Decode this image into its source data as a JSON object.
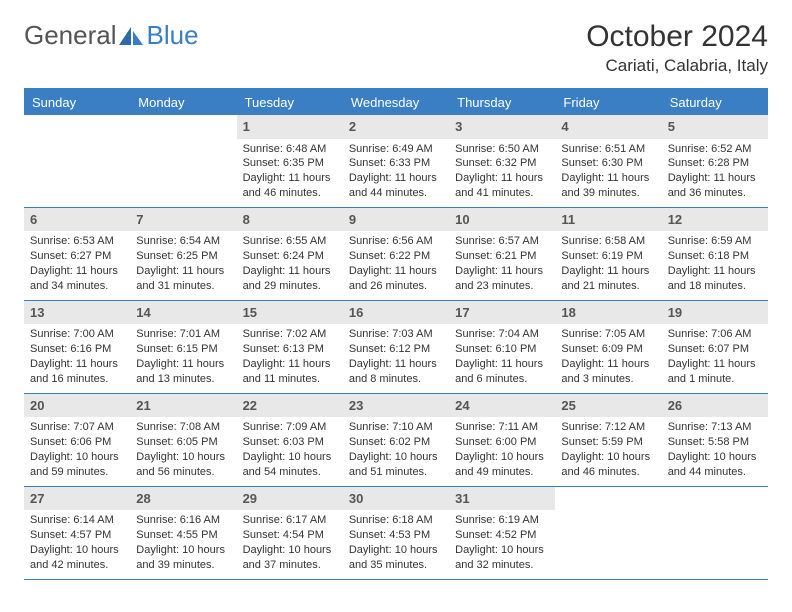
{
  "logo": {
    "text1": "General",
    "text2": "Blue"
  },
  "title": "October 2024",
  "location": "Cariati, Calabria, Italy",
  "colors": {
    "accent": "#3a7fc4",
    "daynum_bg": "#e8e8e8",
    "text": "#333333"
  },
  "day_headers": [
    "Sunday",
    "Monday",
    "Tuesday",
    "Wednesday",
    "Thursday",
    "Friday",
    "Saturday"
  ],
  "weeks": [
    [
      null,
      null,
      {
        "n": "1",
        "sr": "Sunrise: 6:48 AM",
        "ss": "Sunset: 6:35 PM",
        "dl": "Daylight: 11 hours and 46 minutes."
      },
      {
        "n": "2",
        "sr": "Sunrise: 6:49 AM",
        "ss": "Sunset: 6:33 PM",
        "dl": "Daylight: 11 hours and 44 minutes."
      },
      {
        "n": "3",
        "sr": "Sunrise: 6:50 AM",
        "ss": "Sunset: 6:32 PM",
        "dl": "Daylight: 11 hours and 41 minutes."
      },
      {
        "n": "4",
        "sr": "Sunrise: 6:51 AM",
        "ss": "Sunset: 6:30 PM",
        "dl": "Daylight: 11 hours and 39 minutes."
      },
      {
        "n": "5",
        "sr": "Sunrise: 6:52 AM",
        "ss": "Sunset: 6:28 PM",
        "dl": "Daylight: 11 hours and 36 minutes."
      }
    ],
    [
      {
        "n": "6",
        "sr": "Sunrise: 6:53 AM",
        "ss": "Sunset: 6:27 PM",
        "dl": "Daylight: 11 hours and 34 minutes."
      },
      {
        "n": "7",
        "sr": "Sunrise: 6:54 AM",
        "ss": "Sunset: 6:25 PM",
        "dl": "Daylight: 11 hours and 31 minutes."
      },
      {
        "n": "8",
        "sr": "Sunrise: 6:55 AM",
        "ss": "Sunset: 6:24 PM",
        "dl": "Daylight: 11 hours and 29 minutes."
      },
      {
        "n": "9",
        "sr": "Sunrise: 6:56 AM",
        "ss": "Sunset: 6:22 PM",
        "dl": "Daylight: 11 hours and 26 minutes."
      },
      {
        "n": "10",
        "sr": "Sunrise: 6:57 AM",
        "ss": "Sunset: 6:21 PM",
        "dl": "Daylight: 11 hours and 23 minutes."
      },
      {
        "n": "11",
        "sr": "Sunrise: 6:58 AM",
        "ss": "Sunset: 6:19 PM",
        "dl": "Daylight: 11 hours and 21 minutes."
      },
      {
        "n": "12",
        "sr": "Sunrise: 6:59 AM",
        "ss": "Sunset: 6:18 PM",
        "dl": "Daylight: 11 hours and 18 minutes."
      }
    ],
    [
      {
        "n": "13",
        "sr": "Sunrise: 7:00 AM",
        "ss": "Sunset: 6:16 PM",
        "dl": "Daylight: 11 hours and 16 minutes."
      },
      {
        "n": "14",
        "sr": "Sunrise: 7:01 AM",
        "ss": "Sunset: 6:15 PM",
        "dl": "Daylight: 11 hours and 13 minutes."
      },
      {
        "n": "15",
        "sr": "Sunrise: 7:02 AM",
        "ss": "Sunset: 6:13 PM",
        "dl": "Daylight: 11 hours and 11 minutes."
      },
      {
        "n": "16",
        "sr": "Sunrise: 7:03 AM",
        "ss": "Sunset: 6:12 PM",
        "dl": "Daylight: 11 hours and 8 minutes."
      },
      {
        "n": "17",
        "sr": "Sunrise: 7:04 AM",
        "ss": "Sunset: 6:10 PM",
        "dl": "Daylight: 11 hours and 6 minutes."
      },
      {
        "n": "18",
        "sr": "Sunrise: 7:05 AM",
        "ss": "Sunset: 6:09 PM",
        "dl": "Daylight: 11 hours and 3 minutes."
      },
      {
        "n": "19",
        "sr": "Sunrise: 7:06 AM",
        "ss": "Sunset: 6:07 PM",
        "dl": "Daylight: 11 hours and 1 minute."
      }
    ],
    [
      {
        "n": "20",
        "sr": "Sunrise: 7:07 AM",
        "ss": "Sunset: 6:06 PM",
        "dl": "Daylight: 10 hours and 59 minutes."
      },
      {
        "n": "21",
        "sr": "Sunrise: 7:08 AM",
        "ss": "Sunset: 6:05 PM",
        "dl": "Daylight: 10 hours and 56 minutes."
      },
      {
        "n": "22",
        "sr": "Sunrise: 7:09 AM",
        "ss": "Sunset: 6:03 PM",
        "dl": "Daylight: 10 hours and 54 minutes."
      },
      {
        "n": "23",
        "sr": "Sunrise: 7:10 AM",
        "ss": "Sunset: 6:02 PM",
        "dl": "Daylight: 10 hours and 51 minutes."
      },
      {
        "n": "24",
        "sr": "Sunrise: 7:11 AM",
        "ss": "Sunset: 6:00 PM",
        "dl": "Daylight: 10 hours and 49 minutes."
      },
      {
        "n": "25",
        "sr": "Sunrise: 7:12 AM",
        "ss": "Sunset: 5:59 PM",
        "dl": "Daylight: 10 hours and 46 minutes."
      },
      {
        "n": "26",
        "sr": "Sunrise: 7:13 AM",
        "ss": "Sunset: 5:58 PM",
        "dl": "Daylight: 10 hours and 44 minutes."
      }
    ],
    [
      {
        "n": "27",
        "sr": "Sunrise: 6:14 AM",
        "ss": "Sunset: 4:57 PM",
        "dl": "Daylight: 10 hours and 42 minutes."
      },
      {
        "n": "28",
        "sr": "Sunrise: 6:16 AM",
        "ss": "Sunset: 4:55 PM",
        "dl": "Daylight: 10 hours and 39 minutes."
      },
      {
        "n": "29",
        "sr": "Sunrise: 6:17 AM",
        "ss": "Sunset: 4:54 PM",
        "dl": "Daylight: 10 hours and 37 minutes."
      },
      {
        "n": "30",
        "sr": "Sunrise: 6:18 AM",
        "ss": "Sunset: 4:53 PM",
        "dl": "Daylight: 10 hours and 35 minutes."
      },
      {
        "n": "31",
        "sr": "Sunrise: 6:19 AM",
        "ss": "Sunset: 4:52 PM",
        "dl": "Daylight: 10 hours and 32 minutes."
      },
      null,
      null
    ]
  ]
}
